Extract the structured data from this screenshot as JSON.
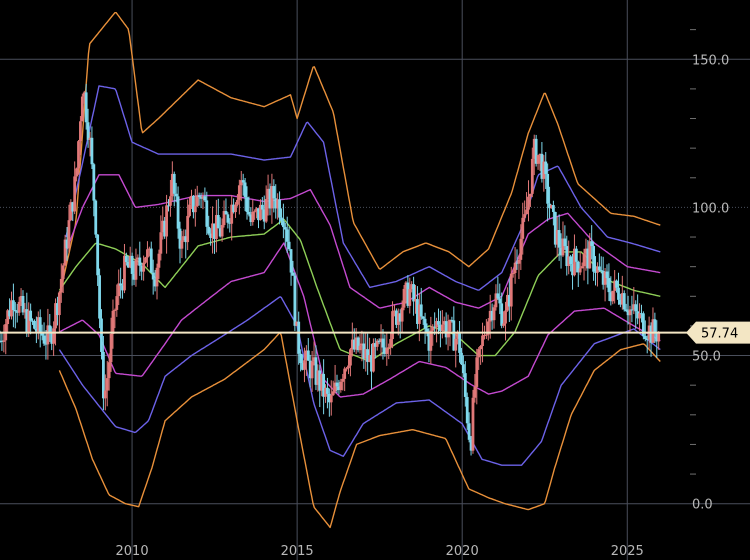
{
  "chart_data": {
    "type": "candlestick",
    "title": "",
    "xlabel": "",
    "ylabel": "",
    "grid": true,
    "x_ticks": [
      "2010",
      "2015",
      "2020",
      "2025"
    ],
    "y_ticks": [
      "0.0",
      "50.0",
      "100.0",
      "150.0"
    ],
    "ylim": [
      -19,
      170
    ],
    "xlim": [
      2006.0,
      2026.9
    ],
    "current_price": "57.74",
    "colors": {
      "background": "#000000",
      "grid": "#4a4f5c",
      "candle_up": "#e07878",
      "candle_down": "#7fd8ec",
      "last_price_line": "#f3e6c4",
      "label_fill": "#f3e6c4"
    },
    "bands": [
      {
        "color": "#e8903a",
        "x": [
          2007.8,
          2008.3,
          2008.7,
          2009.5,
          2009.9,
          2010.3,
          2010.8,
          2012.0,
          2013.0,
          2014.0,
          2014.8,
          2015.0,
          2015.5,
          2016.1,
          2016.7,
          2017.5,
          2018.2,
          2018.9,
          2019.6,
          2020.2,
          2020.8,
          2021.5,
          2022.0,
          2022.5,
          2022.9,
          2023.5,
          2024.5,
          2025.2,
          2026.0
        ],
        "values": [
          70,
          95,
          155,
          166,
          160,
          125,
          130,
          143,
          137,
          134,
          138,
          130,
          148,
          132,
          95,
          79,
          85,
          88,
          85,
          80,
          86,
          105,
          125,
          139,
          128,
          108,
          98,
          97,
          94
        ]
      },
      {
        "color": "#6c62e8",
        "x": [
          2008.0,
          2008.5,
          2009.0,
          2009.5,
          2010.0,
          2010.8,
          2012.0,
          2013.0,
          2014.0,
          2014.8,
          2015.3,
          2015.8,
          2016.4,
          2017.2,
          2018.0,
          2019.0,
          2019.8,
          2020.5,
          2021.2,
          2021.8,
          2022.3,
          2022.9,
          2023.6,
          2024.4,
          2025.1,
          2026.0
        ],
        "values": [
          90,
          115,
          141,
          140,
          122,
          118,
          118,
          118,
          116,
          117,
          129,
          122,
          88,
          73,
          75,
          80,
          75,
          72,
          78,
          93,
          111,
          114,
          100,
          90,
          88,
          85
        ]
      },
      {
        "color": "#c44ad0",
        "x": [
          2008.0,
          2008.5,
          2009.0,
          2009.6,
          2010.1,
          2010.8,
          2012.0,
          2013.0,
          2014.0,
          2014.8,
          2015.4,
          2016.0,
          2016.6,
          2017.5,
          2018.3,
          2019.0,
          2019.8,
          2020.5,
          2021.2,
          2022.0,
          2022.6,
          2023.2,
          2024.0,
          2025.0,
          2026.0
        ],
        "values": [
          85,
          100,
          111,
          111,
          100,
          101,
          104,
          104,
          102,
          103,
          106,
          94,
          73,
          66,
          68,
          73,
          68,
          66,
          70,
          91,
          96,
          98,
          88,
          80,
          78
        ]
      },
      {
        "color": "#8fcf58",
        "x": [
          2007.8,
          2008.3,
          2008.9,
          2009.5,
          2010.3,
          2011.0,
          2012.0,
          2013.0,
          2014.0,
          2014.6,
          2015.1,
          2015.6,
          2016.3,
          2017.2,
          2018.0,
          2019.0,
          2019.8,
          2020.5,
          2021.0,
          2021.6,
          2022.3,
          2023.0,
          2023.6,
          2024.5,
          2025.2,
          2026.0
        ],
        "values": [
          72,
          80,
          88,
          86,
          81,
          73,
          87,
          90,
          91,
          96,
          89,
          73,
          52,
          48,
          54,
          60,
          57,
          50,
          50,
          58,
          77,
          85,
          85,
          75,
          72,
          70
        ]
      },
      {
        "color": "#c44ad0",
        "x": [
          2007.8,
          2008.5,
          2009.0,
          2009.5,
          2010.3,
          2011.0,
          2011.5,
          2012.3,
          2013.0,
          2014.0,
          2014.6,
          2015.2,
          2015.8,
          2016.3,
          2017.0,
          2017.8,
          2018.7,
          2019.5,
          2020.3,
          2020.8,
          2021.2,
          2022.0,
          2022.6,
          2023.4,
          2024.3,
          2025.2,
          2026.0
        ],
        "values": [
          58,
          62,
          57,
          44,
          43,
          54,
          62,
          69,
          75,
          78,
          88,
          70,
          42,
          36,
          37,
          42,
          48,
          46,
          40,
          37,
          38,
          43,
          57,
          65,
          66,
          60,
          55
        ]
      },
      {
        "color": "#6c62e8",
        "x": [
          2007.8,
          2008.5,
          2009.0,
          2009.5,
          2010.1,
          2010.5,
          2011.0,
          2011.8,
          2012.8,
          2013.5,
          2014.5,
          2015.0,
          2015.5,
          2016.0,
          2016.4,
          2017.0,
          2018.0,
          2019.0,
          2020.0,
          2020.6,
          2021.2,
          2021.8,
          2022.4,
          2023.0,
          2024.0,
          2025.2,
          2026.0
        ],
        "values": [
          52,
          40,
          33,
          26,
          24,
          28,
          43,
          50,
          57,
          62,
          70,
          60,
          34,
          18,
          16,
          27,
          34,
          35,
          27,
          15,
          13,
          13,
          21,
          40,
          54,
          59,
          52
        ]
      },
      {
        "color": "#e8903a",
        "x": [
          2007.8,
          2008.3,
          2008.8,
          2009.3,
          2009.8,
          2010.2,
          2010.6,
          2011.0,
          2011.8,
          2012.8,
          2014.0,
          2014.5,
          2015.0,
          2015.5,
          2016.0,
          2016.3,
          2016.8,
          2017.5,
          2018.5,
          2019.5,
          2020.2,
          2020.8,
          2021.3,
          2022.0,
          2022.5,
          2022.8,
          2023.3,
          2024.0,
          2024.8,
          2025.5,
          2026.0
        ],
        "values": [
          45,
          32,
          15,
          3,
          0,
          -1,
          12,
          28,
          36,
          42,
          52,
          58,
          28,
          -1,
          -8,
          4,
          20,
          23,
          25,
          22,
          5,
          2,
          0,
          -2,
          0,
          12,
          30,
          45,
          52,
          54,
          48
        ]
      }
    ],
    "price_path": {
      "x": [
        2006.0,
        2006.4,
        2006.8,
        2007.2,
        2007.5,
        2007.8,
        2008.1,
        2008.3,
        2008.5,
        2008.7,
        2008.9,
        2009.1,
        2009.2,
        2009.5,
        2009.8,
        2010.1,
        2010.4,
        2010.7,
        2011.0,
        2011.2,
        2011.5,
        2011.8,
        2012.1,
        2012.4,
        2012.7,
        2013.0,
        2013.3,
        2013.6,
        2014.0,
        2014.3,
        2014.6,
        2014.8,
        2015.0,
        2015.2,
        2015.5,
        2015.8,
        2016.0,
        2016.3,
        2016.6,
        2016.9,
        2017.2,
        2017.6,
        2018.0,
        2018.4,
        2018.7,
        2019.0,
        2019.3,
        2019.6,
        2019.9,
        2020.1,
        2020.25,
        2020.4,
        2020.7,
        2021.0,
        2021.3,
        2021.6,
        2021.9,
        2022.2,
        2022.4,
        2022.6,
        2022.8,
        2023.0,
        2023.3,
        2023.6,
        2023.9,
        2024.2,
        2024.5,
        2024.8,
        2025.1,
        2025.4,
        2025.7,
        2026.0
      ],
      "values": [
        55,
        70,
        62,
        58,
        55,
        72,
        95,
        110,
        142,
        125,
        95,
        40,
        38,
        68,
        80,
        78,
        85,
        78,
        95,
        110,
        86,
        100,
        105,
        93,
        92,
        100,
        110,
        95,
        100,
        104,
        98,
        84,
        55,
        48,
        45,
        38,
        33,
        43,
        52,
        52,
        48,
        53,
        64,
        72,
        63,
        55,
        63,
        58,
        55,
        35,
        20,
        42,
        60,
        70,
        62,
        82,
        95,
        120,
        115,
        103,
        92,
        86,
        82,
        82,
        84,
        76,
        72,
        72,
        65,
        62,
        58,
        57.74
      ]
    }
  }
}
